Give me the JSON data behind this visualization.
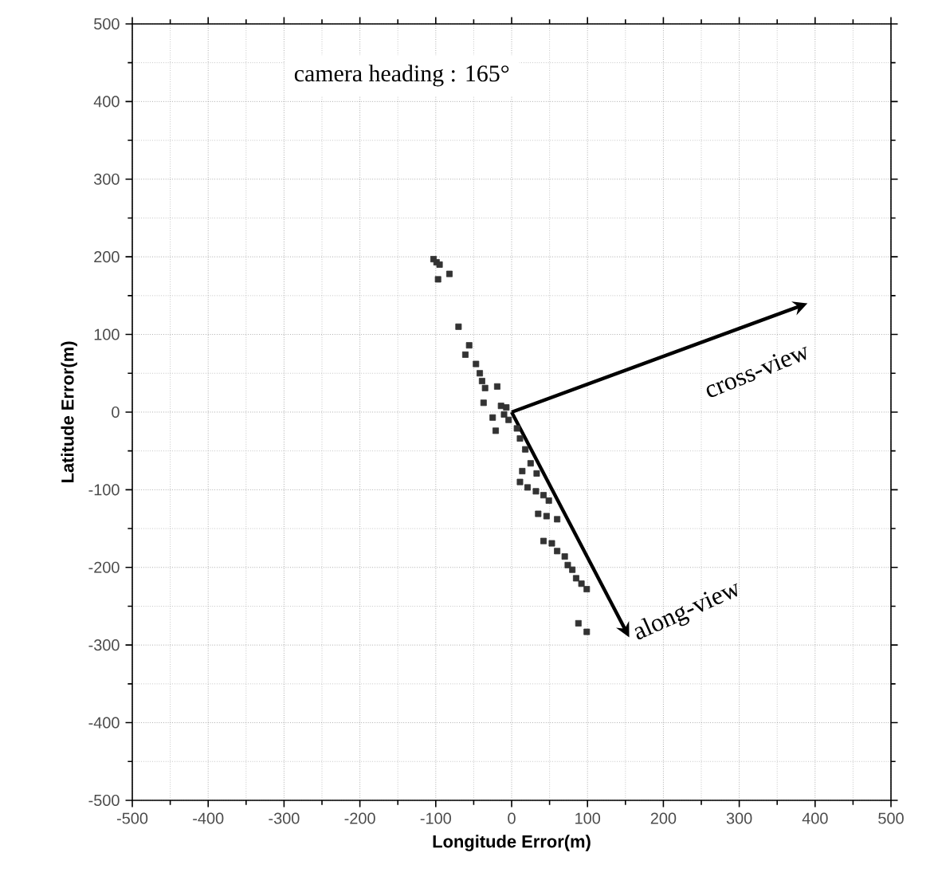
{
  "chart_data": {
    "type": "scatter",
    "xlabel": "Longitude Error(m)",
    "ylabel": "Latitude Error(m)",
    "xlim": [
      -500,
      500
    ],
    "ylim": [
      -500,
      500
    ],
    "xticks": [
      -500,
      -400,
      -300,
      -200,
      -100,
      0,
      100,
      200,
      300,
      400,
      500
    ],
    "yticks": [
      -500,
      -400,
      -300,
      -200,
      -100,
      0,
      100,
      200,
      300,
      400,
      500
    ],
    "grid": true,
    "marker": "square",
    "x": [
      -103,
      -99,
      -95,
      -82,
      -97,
      -70,
      -56,
      -61,
      -47,
      -42,
      -39,
      -35,
      -19,
      -37,
      -14,
      -7,
      -10,
      -25,
      -4,
      -21,
      7,
      11,
      18,
      25,
      14,
      33,
      11,
      21,
      32,
      42,
      49,
      35,
      46,
      60,
      42,
      53,
      60,
      70,
      74,
      80,
      85,
      92,
      99,
      88,
      99
    ],
    "values": [
      197,
      193,
      190,
      178,
      171,
      110,
      86,
      74,
      62,
      50,
      40,
      31,
      33,
      12,
      8,
      6,
      -3,
      -7,
      -10,
      -24,
      -21,
      -34,
      -48,
      -66,
      -76,
      -79,
      -90,
      -97,
      -102,
      -107,
      -114,
      -131,
      -134,
      -138,
      -166,
      -169,
      -179,
      -186,
      -197,
      -203,
      -214,
      -221,
      -228,
      -272,
      -283
    ],
    "color": "#333333",
    "annotations": [
      "camera heading : 165°",
      "cross-view",
      "along-view"
    ]
  }
}
